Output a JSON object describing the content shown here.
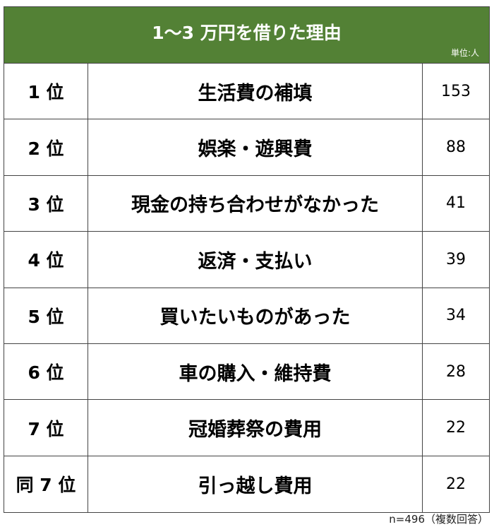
{
  "title": "1～3 万円を借りた理由",
  "unit": "単位:人",
  "rows": [
    {
      "rank": "1 位",
      "reason": "生活費の補填",
      "count": "153"
    },
    {
      "rank": "2 位",
      "reason": "娯楽・遊興費",
      "count": "88"
    },
    {
      "rank": "3 位",
      "reason": "現金の持ち合わせがなかった",
      "count": "41"
    },
    {
      "rank": "4 位",
      "reason": "返済・支払い",
      "count": "39"
    },
    {
      "rank": "5 位",
      "reason": "買いたいものがあった",
      "count": "34"
    },
    {
      "rank": "6 位",
      "reason": "車の購入・維持費",
      "count": "28"
    },
    {
      "rank": "7 位",
      "reason": "冠婚葬祭の費用",
      "count": "22"
    },
    {
      "rank": "同 7 位",
      "reason": "引っ越し費用",
      "count": "22"
    }
  ],
  "note": "n=496（複数回答）",
  "colors": {
    "header": "#538135"
  }
}
